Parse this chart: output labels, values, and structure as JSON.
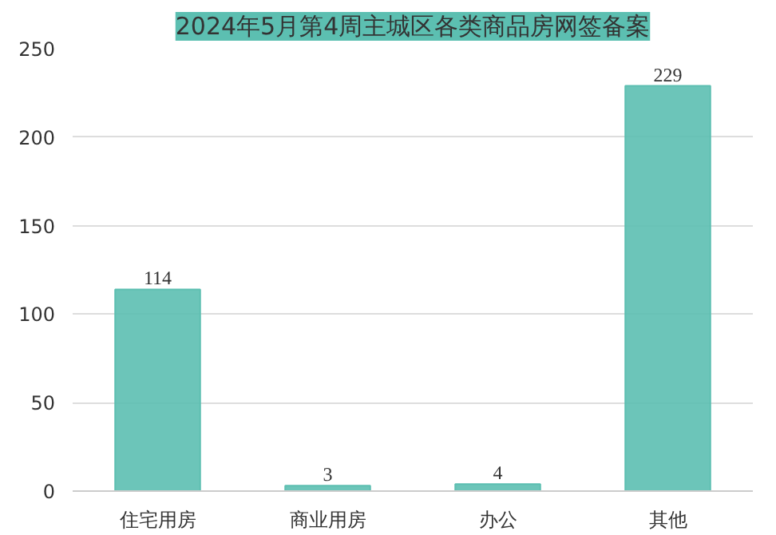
{
  "chart_data": {
    "type": "bar",
    "title": "2024年5月第4周主城区各类商品房网签备案",
    "categories": [
      "住宅用房",
      "商业用房",
      "办公",
      "其他"
    ],
    "values": [
      114,
      3,
      4,
      229
    ],
    "color": "#5cbfb1",
    "ylim": [
      0,
      250
    ],
    "yticks": [
      0,
      50,
      100,
      150,
      200,
      250
    ],
    "grid": "y",
    "data_labels": true
  }
}
